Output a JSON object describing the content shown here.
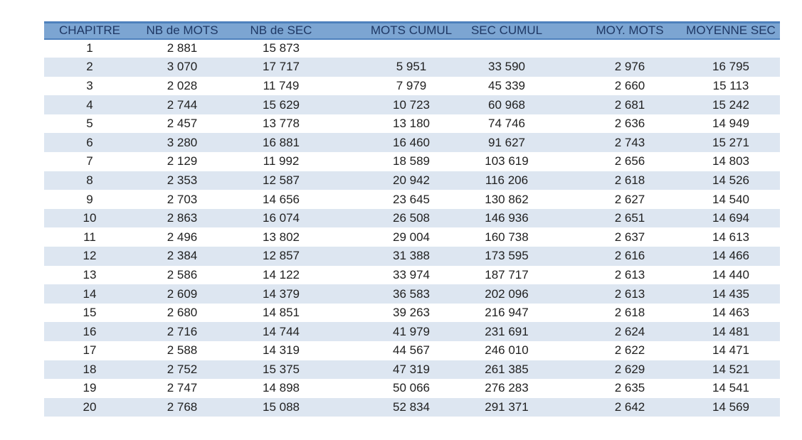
{
  "colors": {
    "header_bg": "#7CA5D2",
    "header_border": "#4E81BD",
    "header_text": "#1F3864",
    "band_even_row": "#DDE6F1",
    "band_odd_row": "#FFFFFF",
    "body_text": "#212121",
    "page_bg": "#FFFFFF"
  },
  "chart_data": {
    "type": "table",
    "title": "",
    "columns": [
      "CHAPITRE",
      "NB de MOTS",
      "NB de SEC",
      "MOTS CUMUL",
      "SEC CUMUL",
      "MOY. MOTS",
      "MOYENNE SEC"
    ],
    "rows": [
      [
        "1",
        "2 881",
        "15 873",
        "",
        "",
        "",
        ""
      ],
      [
        "2",
        "3 070",
        "17 717",
        "5 951",
        "33 590",
        "2 976",
        "16 795"
      ],
      [
        "3",
        "2 028",
        "11 749",
        "7 979",
        "45 339",
        "2 660",
        "15 113"
      ],
      [
        "4",
        "2 744",
        "15 629",
        "10 723",
        "60 968",
        "2 681",
        "15 242"
      ],
      [
        "5",
        "2 457",
        "13 778",
        "13 180",
        "74 746",
        "2 636",
        "14 949"
      ],
      [
        "6",
        "3 280",
        "16 881",
        "16 460",
        "91 627",
        "2 743",
        "15 271"
      ],
      [
        "7",
        "2 129",
        "11 992",
        "18 589",
        "103 619",
        "2 656",
        "14 803"
      ],
      [
        "8",
        "2 353",
        "12 587",
        "20 942",
        "116 206",
        "2 618",
        "14 526"
      ],
      [
        "9",
        "2 703",
        "14 656",
        "23 645",
        "130 862",
        "2 627",
        "14 540"
      ],
      [
        "10",
        "2 863",
        "16 074",
        "26 508",
        "146 936",
        "2 651",
        "14 694"
      ],
      [
        "11",
        "2 496",
        "13 802",
        "29 004",
        "160 738",
        "2 637",
        "14 613"
      ],
      [
        "12",
        "2 384",
        "12 857",
        "31 388",
        "173 595",
        "2 616",
        "14 466"
      ],
      [
        "13",
        "2 586",
        "14 122",
        "33 974",
        "187 717",
        "2 613",
        "14 440"
      ],
      [
        "14",
        "2 609",
        "14 379",
        "36 583",
        "202 096",
        "2 613",
        "14 435"
      ],
      [
        "15",
        "2 680",
        "14 851",
        "39 263",
        "216 947",
        "2 618",
        "14 463"
      ],
      [
        "16",
        "2 716",
        "14 744",
        "41 979",
        "231 691",
        "2 624",
        "14 481"
      ],
      [
        "17",
        "2 588",
        "14 319",
        "44 567",
        "246 010",
        "2 622",
        "14 471"
      ],
      [
        "18",
        "2 752",
        "15 375",
        "47 319",
        "261 385",
        "2 629",
        "14 521"
      ],
      [
        "19",
        "2 747",
        "14 898",
        "50 066",
        "276 283",
        "2 635",
        "14 541"
      ],
      [
        "20",
        "2 768",
        "15 088",
        "52 834",
        "291 371",
        "2 642",
        "14 569"
      ]
    ]
  }
}
